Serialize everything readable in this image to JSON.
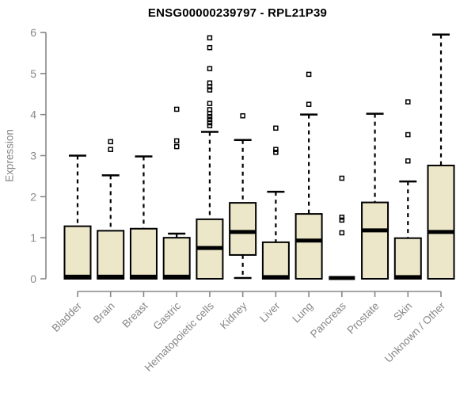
{
  "chart_data": {
    "type": "boxplot",
    "title": "ENSG00000239797 - RPL21P39",
    "xlabel": "",
    "ylabel": "Expression",
    "ylim": [
      0,
      6
    ],
    "yticks": [
      0,
      1,
      2,
      3,
      4,
      5,
      6
    ],
    "grid": false,
    "legend": null,
    "categories": [
      "Bladder",
      "Brain",
      "Breast",
      "Gastric",
      "Hematopoietic cells",
      "Kidney",
      "Liver",
      "Lung",
      "Pancreas",
      "Prostate",
      "Skin",
      "Unknown / Other"
    ],
    "series": [
      {
        "category": "Bladder",
        "whisker_low": 0,
        "q1": 0,
        "median": 0.05,
        "q3": 1.28,
        "whisker_high": 3.0,
        "outliers": []
      },
      {
        "category": "Brain",
        "whisker_low": 0,
        "q1": 0,
        "median": 0.05,
        "q3": 1.17,
        "whisker_high": 2.52,
        "outliers": [
          3.34,
          3.15
        ]
      },
      {
        "category": "Breast",
        "whisker_low": 0,
        "q1": 0,
        "median": 0.05,
        "q3": 1.22,
        "whisker_high": 2.98,
        "outliers": []
      },
      {
        "category": "Gastric",
        "whisker_low": 0,
        "q1": 0,
        "median": 0.05,
        "q3": 1.0,
        "whisker_high": 1.1,
        "outliers": [
          4.13,
          3.36,
          3.22
        ]
      },
      {
        "category": "Hematopoietic cells",
        "whisker_low": 0,
        "q1": 0,
        "median": 0.75,
        "q3": 1.45,
        "whisker_high": 3.58,
        "outliers": [
          5.87,
          5.63,
          5.12,
          4.77,
          4.68,
          4.6,
          4.27,
          4.12,
          4.03,
          3.95,
          3.88,
          3.8,
          3.73
        ]
      },
      {
        "category": "Kidney",
        "whisker_low": 0.02,
        "q1": 0.58,
        "median": 1.14,
        "q3": 1.85,
        "whisker_high": 3.38,
        "outliers": [
          3.97
        ]
      },
      {
        "category": "Liver",
        "whisker_low": 0,
        "q1": 0,
        "median": 0.04,
        "q3": 0.89,
        "whisker_high": 2.12,
        "outliers": [
          3.67,
          3.15,
          3.08
        ]
      },
      {
        "category": "Lung",
        "whisker_low": 0,
        "q1": 0,
        "median": 0.93,
        "q3": 1.58,
        "whisker_high": 4.0,
        "outliers": [
          4.98,
          4.25
        ]
      },
      {
        "category": "Pancreas",
        "whisker_low": 0.02,
        "q1": 0.02,
        "median": 0.02,
        "q3": 0.02,
        "whisker_high": 0.02,
        "outliers": [
          2.45,
          1.5,
          1.43,
          1.12
        ]
      },
      {
        "category": "Prostate",
        "whisker_low": 0,
        "q1": 0,
        "median": 1.18,
        "q3": 1.86,
        "whisker_high": 4.02,
        "outliers": []
      },
      {
        "category": "Skin",
        "whisker_low": 0,
        "q1": 0,
        "median": 0.04,
        "q3": 0.99,
        "whisker_high": 2.37,
        "outliers": [
          4.31,
          3.51,
          2.87
        ]
      },
      {
        "category": "Unknown / Other",
        "whisker_low": 0,
        "q1": 0,
        "median": 1.14,
        "q3": 2.76,
        "whisker_high": 5.95,
        "outliers": []
      }
    ],
    "colors": {
      "box_fill": "#EDE7C9",
      "box_border": "#000000",
      "median": "#000000",
      "whisker": "#000000",
      "outlier": "#000000",
      "axis": "#878787",
      "tick_label": "#878787",
      "title": "#000000"
    }
  }
}
